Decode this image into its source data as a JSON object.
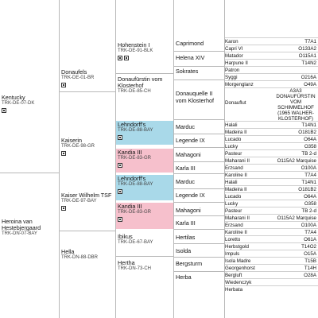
{
  "gen1": [
    {
      "name": "Kentucky",
      "code": "TRK-DE-07-DK"
    },
    {
      "name": "Heroina van Hestebjergaard",
      "code": "TRK-DN-07-BAY"
    }
  ],
  "gen2": [
    {
      "name": "Donaufels",
      "code": "TRK-DE-01-BR"
    },
    {
      "name": "Kaiserin",
      "code": "TRK-DE-98-GR"
    },
    {
      "name": "Kaiser Wilhelm TSF",
      "code": "TRK-DE-97-BAY"
    },
    {
      "name": "Hella",
      "code": "TRK-DN-88-DBR"
    }
  ],
  "gen3": [
    {
      "name": "Hohenstein I",
      "code": "TRK-DE-91-BLK"
    },
    {
      "name": "Donaufürstin vom Klosterhof",
      "code": "TRK-DE-85-CH"
    },
    {
      "name": "Lehndorff's",
      "code": "TRK-DE-88-BAY"
    },
    {
      "name": "Kandia III",
      "code": "TRK-DE-83-GR"
    },
    {
      "name": "Lehndorff's",
      "code": "TRK-DE-88-BAY"
    },
    {
      "name": "Kandia III",
      "code": "TRK-DE-83-GR"
    },
    {
      "name": "Ibikus",
      "code": "TRK-DE-67-BAY"
    },
    {
      "name": "Hertha",
      "code": "TRK-DN-73-CH"
    }
  ],
  "gen4": [
    "Caprimond",
    "Helena XIV",
    "Sokrates",
    "Donauquelle II vom Klosterhof",
    "Marduc",
    "Legende IX",
    "Mahagoni",
    "Karla III",
    "Marduc",
    "Legende IX",
    "Mahagoni",
    "Karla III",
    "Hertilas",
    "Isolda",
    "Bergsturm",
    "Herba"
  ],
  "gen5": [
    {
      "n": "Karon",
      "c": "T7A1"
    },
    {
      "n": "Capri VI",
      "c": "O133A2"
    },
    {
      "n": "Matador",
      "c": "O115A1"
    },
    {
      "n": "Harpune II",
      "c": "T14N2"
    },
    {
      "n": "Patron",
      "c": ""
    },
    {
      "n": "Syggi",
      "c": "O216A"
    },
    {
      "n": "Morgenglanz",
      "c": "O49A"
    },
    {
      "n": "Donauflut",
      "c": "A3A3 DONAUFÜRSTIN VOM SCHIMMELHOF (1965 WALHER-KLOSTERHOF)"
    },
    {
      "n": "Halali",
      "c": "T14N1"
    },
    {
      "n": "Madeira II",
      "c": "O181B2"
    },
    {
      "n": "Lucado",
      "c": "O64A"
    },
    {
      "n": "Lucky",
      "c": "O358"
    },
    {
      "n": "Pasteur",
      "c": "TB 2-d"
    },
    {
      "n": "Maharani II",
      "c": "O115A2 Marquise"
    },
    {
      "n": "Erzsand",
      "c": "O100A"
    },
    {
      "n": "Karoline II",
      "c": "T7A4"
    },
    {
      "n": "Halali",
      "c": "T14N1"
    },
    {
      "n": "Madeira II",
      "c": "O181B2"
    },
    {
      "n": "Lucado",
      "c": "O64A"
    },
    {
      "n": "Lucky",
      "c": "O358"
    },
    {
      "n": "Pasteur",
      "c": "TB 2-d"
    },
    {
      "n": "Maharani II",
      "c": "O115A2 Marquise"
    },
    {
      "n": "Erzsand",
      "c": "O100A"
    },
    {
      "n": "Karoline II",
      "c": "T7A4"
    },
    {
      "n": "Loretto",
      "c": "O61A"
    },
    {
      "n": "Herbstgold",
      "c": "T14O2"
    },
    {
      "n": "Impuls",
      "c": "O15A"
    },
    {
      "n": "Isola Madre",
      "c": "T15B"
    },
    {
      "n": "Georgenhorst",
      "c": "T14H"
    },
    {
      "n": "Bergluft",
      "c": "O28A"
    },
    {
      "n": "Wiedenczyk",
      "c": ""
    },
    {
      "n": "Herbata",
      "c": ""
    }
  ]
}
